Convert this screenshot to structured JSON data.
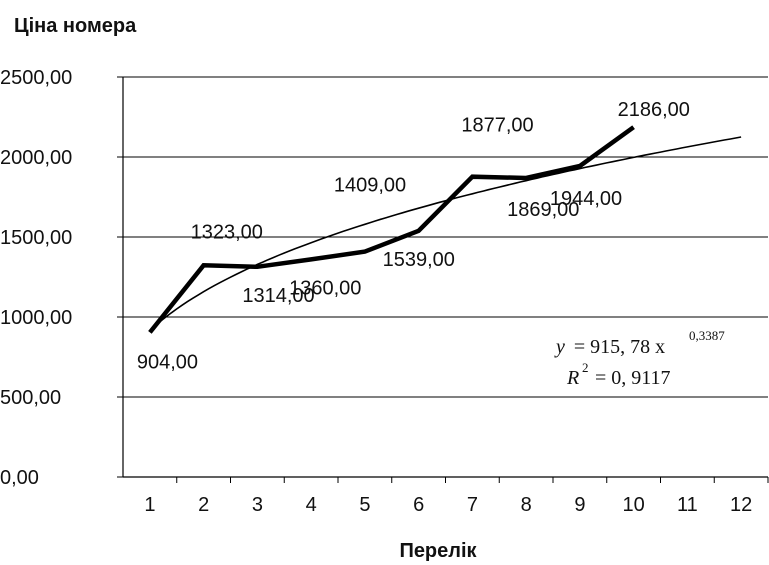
{
  "chart_data": {
    "type": "line",
    "ylabel": "Ціна номера",
    "xlabel": "Перелік",
    "x_categories": [
      "1",
      "2",
      "3",
      "4",
      "5",
      "6",
      "7",
      "8",
      "9",
      "10",
      "11",
      "12"
    ],
    "y_ticks": [
      "0,00",
      "500,00",
      "1000,00",
      "1500,00",
      "2000,00",
      "2500,00"
    ],
    "ylim": [
      0,
      2500
    ],
    "grid": "horizontal",
    "series": [
      {
        "x": [
          1,
          2,
          3,
          4,
          5,
          6,
          7,
          8,
          9,
          10
        ],
        "values": [
          904,
          1323,
          1314,
          1360,
          1409,
          1539,
          1877,
          1869,
          1944,
          2186
        ],
        "data_labels": [
          "904,00",
          "1323,00",
          "1314,00",
          "1360,00",
          "1409,00",
          "1539,00",
          "1877,00",
          "1869,00",
          "1944,00",
          "2186,00"
        ],
        "color": "#000000",
        "style": "thick"
      },
      {
        "trend": "power",
        "coefficient": 915.78,
        "exponent": 0.3387,
        "x_range": [
          1,
          12
        ],
        "color": "#000000",
        "style": "thin"
      }
    ],
    "annotations": {
      "equation_lhs": "y",
      "equation_rhs": "= 915, 78 x",
      "equation_exponent": "0,3387",
      "r2_lhs": "R",
      "r2_exponent": "2",
      "r2_rhs": "= 0, 9117"
    }
  }
}
